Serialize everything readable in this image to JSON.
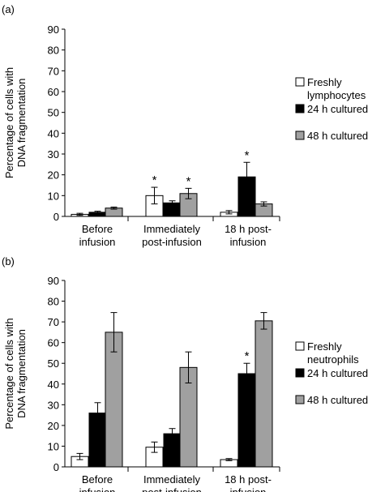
{
  "chart_data": [
    {
      "panel_label": "(a)",
      "type": "bar",
      "ylabel": "Percentage of cells with DNA fragmentation",
      "ylim": [
        0,
        90
      ],
      "yticks": [
        0,
        10,
        20,
        30,
        40,
        50,
        60,
        70,
        80,
        90
      ],
      "categories": [
        {
          "line1": "Before",
          "line2": "infusion"
        },
        {
          "line1": "Immediately",
          "line2": "post-infusion"
        },
        {
          "line1": "18 h post-",
          "line2": "infusion"
        }
      ],
      "series": [
        {
          "name_line1": "Freshly",
          "name_line2": "lymphocytes",
          "color": "#ffffff",
          "values": [
            1,
            10,
            2
          ],
          "errors": [
            0.5,
            4,
            0.8
          ],
          "significant": [
            false,
            true,
            false
          ]
        },
        {
          "name_line1": "24 h cultured",
          "name_line2": "",
          "color": "#000000",
          "values": [
            2,
            6.5,
            19
          ],
          "errors": [
            0.5,
            1,
            7
          ],
          "significant": [
            false,
            false,
            true
          ]
        },
        {
          "name_line1": "48 h cultured",
          "name_line2": "",
          "color": "#a0a0a0",
          "values": [
            4,
            11,
            6
          ],
          "errors": [
            0.5,
            2.5,
            1
          ],
          "significant": [
            false,
            true,
            false
          ]
        }
      ],
      "marker": "*",
      "legend_position": "right",
      "grid": false
    },
    {
      "panel_label": "(b)",
      "type": "bar",
      "ylabel": "Percentage of cells with DNA fragmentation",
      "ylim": [
        0,
        90
      ],
      "yticks": [
        0,
        10,
        20,
        30,
        40,
        50,
        60,
        70,
        80,
        90
      ],
      "categories": [
        {
          "line1": "Before",
          "line2": "infusion"
        },
        {
          "line1": "Immediately",
          "line2": "post-infusion"
        },
        {
          "line1": "18 h post-",
          "line2": "infusion"
        }
      ],
      "series": [
        {
          "name_line1": "Freshly",
          "name_line2": "neutrophils",
          "color": "#ffffff",
          "values": [
            5,
            9.5,
            3.5
          ],
          "errors": [
            1.5,
            2.5,
            0.5
          ],
          "significant": [
            false,
            false,
            false
          ]
        },
        {
          "name_line1": "24 h cultured",
          "name_line2": "",
          "color": "#000000",
          "values": [
            26,
            16,
            45
          ],
          "errors": [
            5,
            2.5,
            5
          ],
          "significant": [
            false,
            false,
            true
          ]
        },
        {
          "name_line1": "48 h cultured",
          "name_line2": "",
          "color": "#a0a0a0",
          "values": [
            65,
            48,
            70.5
          ],
          "errors": [
            9.5,
            7.5,
            4
          ],
          "significant": [
            false,
            false,
            false
          ]
        }
      ],
      "marker": "*",
      "legend_position": "right",
      "grid": false
    }
  ]
}
